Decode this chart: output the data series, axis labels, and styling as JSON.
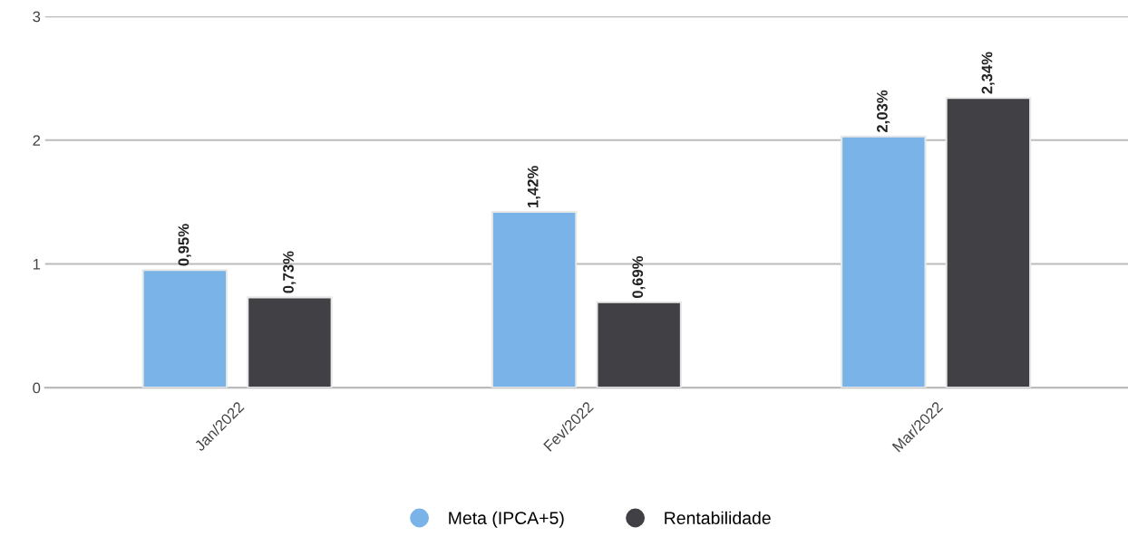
{
  "chart_data": {
    "type": "bar",
    "categories": [
      "Jan/2022",
      "Fev/2022",
      "Mar/2022"
    ],
    "series": [
      {
        "name": "Meta (IPCA+5)",
        "color": "#7ab3e8",
        "values": [
          0.95,
          1.42,
          2.03
        ],
        "value_labels": [
          "0,95%",
          "1,42%",
          "2,03%"
        ]
      },
      {
        "name": "Rentabilidade",
        "color": "#414045",
        "values": [
          0.73,
          0.69,
          2.34
        ],
        "value_labels": [
          "0,73%",
          "0,69%",
          "2,34%"
        ]
      }
    ],
    "ylim": [
      0,
      3
    ],
    "yticks": [
      0,
      1,
      2,
      3
    ],
    "grid": "y",
    "legend": "bottom"
  }
}
